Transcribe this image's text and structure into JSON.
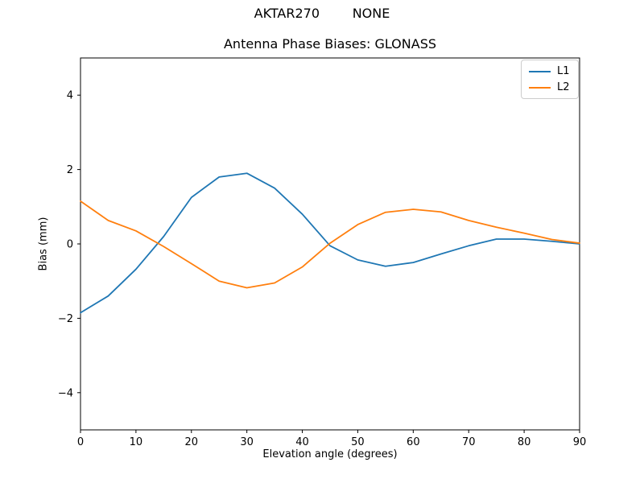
{
  "figure": {
    "suptitle": "AKTAR270        NONE"
  },
  "chart_data": {
    "type": "line",
    "title": "Antenna Phase Biases: GLONASS",
    "xlabel": "Elevation angle (degrees)",
    "ylabel": "Bias (mm)",
    "xlim": [
      0,
      90
    ],
    "ylim": [
      -5,
      5
    ],
    "xticks": [
      0,
      10,
      20,
      30,
      40,
      50,
      60,
      70,
      80,
      90
    ],
    "yticks": [
      -4,
      -2,
      0,
      2,
      4
    ],
    "grid": false,
    "legend_position": "upper right",
    "x": [
      0,
      5,
      10,
      15,
      20,
      25,
      30,
      35,
      40,
      45,
      50,
      55,
      60,
      65,
      70,
      75,
      80,
      85,
      90
    ],
    "series": [
      {
        "name": "L1",
        "color": "#1f77b4",
        "values": [
          -1.85,
          -1.4,
          -0.68,
          0.2,
          1.25,
          1.8,
          1.9,
          1.5,
          0.8,
          -0.05,
          -0.43,
          -0.6,
          -0.5,
          -0.27,
          -0.05,
          0.13,
          0.13,
          0.07,
          0.0
        ]
      },
      {
        "name": "L2",
        "color": "#ff7f0e",
        "values": [
          1.15,
          0.63,
          0.35,
          -0.07,
          -0.53,
          -1.0,
          -1.18,
          -1.05,
          -0.62,
          0.02,
          0.52,
          0.85,
          0.93,
          0.86,
          0.63,
          0.45,
          0.29,
          0.12,
          0.02
        ]
      }
    ]
  }
}
